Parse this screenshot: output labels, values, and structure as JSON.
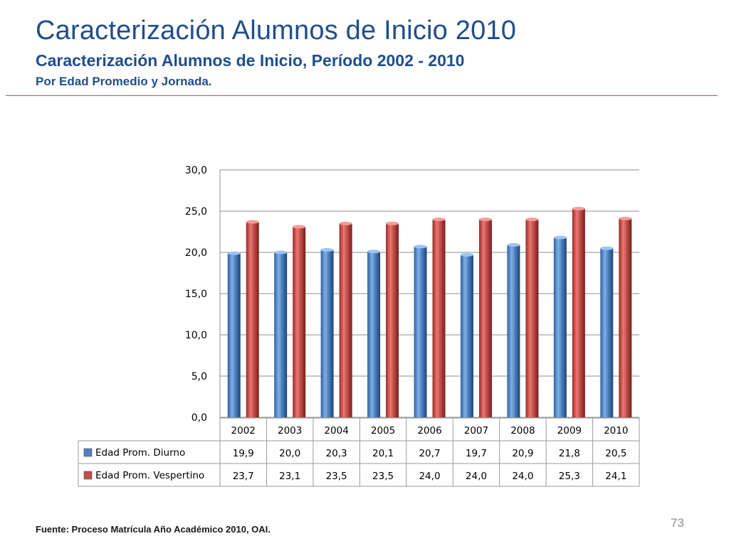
{
  "header": {
    "title": "Caracterización Alumnos de Inicio 2010",
    "subtitle": "Caracterización Alumnos de Inicio, Período 2002 - 2010",
    "subtitle2": "Por Edad Promedio y Jornada."
  },
  "footer": {
    "source": "Fuente: Proceso Matrícula Año Académico 2010, OAI.",
    "page_number": "73"
  },
  "colors": {
    "accent_rule": "#c0504d",
    "title": "#1f4e8c",
    "series_diurno": "#4f81bd",
    "series_vespertino": "#c0504d"
  },
  "chart_data": {
    "type": "bar",
    "categories": [
      "2002",
      "2003",
      "2004",
      "2005",
      "2006",
      "2007",
      "2008",
      "2009",
      "2010"
    ],
    "series": [
      {
        "name": "Edad Prom. Diurno",
        "values": [
          19.9,
          20.0,
          20.3,
          20.1,
          20.7,
          19.7,
          20.9,
          21.8,
          20.5
        ],
        "labels": [
          "19,9",
          "20,0",
          "20,3",
          "20,1",
          "20,7",
          "19,7",
          "20,9",
          "21,8",
          "20,5"
        ]
      },
      {
        "name": "Edad Prom. Vespertino",
        "values": [
          23.7,
          23.1,
          23.5,
          23.5,
          24.0,
          24.0,
          24.0,
          25.3,
          24.1
        ],
        "labels": [
          "23,7",
          "23,1",
          "23,5",
          "23,5",
          "24,0",
          "24,0",
          "24,0",
          "25,3",
          "24,1"
        ]
      }
    ],
    "ylim": [
      0,
      30
    ],
    "yticks": [
      0,
      5,
      10,
      15,
      20,
      25,
      30
    ],
    "ytick_labels": [
      "0,0",
      "5,0",
      "10,0",
      "15,0",
      "20,0",
      "25,0",
      "30,0"
    ],
    "grid": true,
    "legend": "data-table-below"
  }
}
